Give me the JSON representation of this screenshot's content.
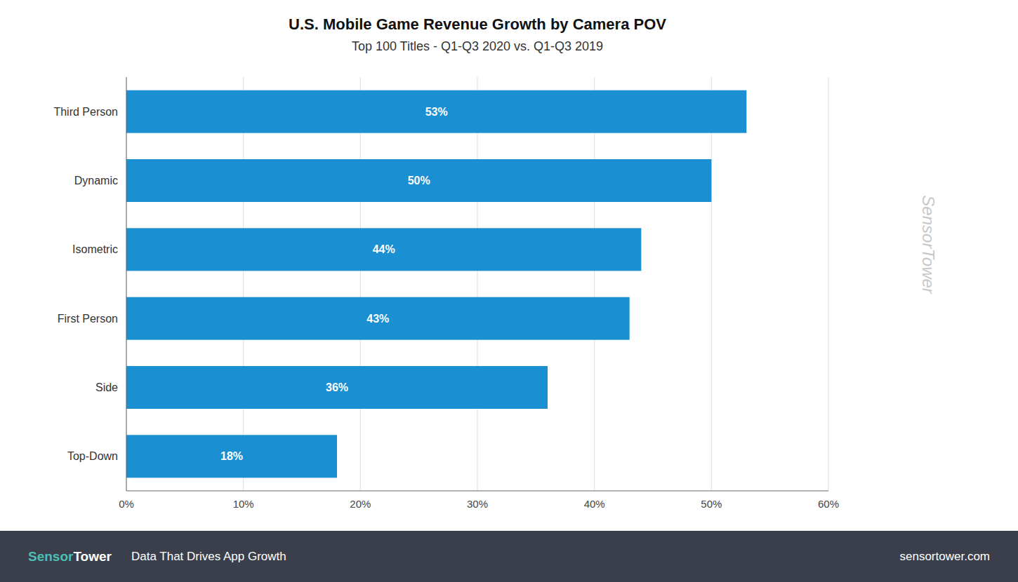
{
  "chart_data": {
    "type": "bar",
    "orientation": "horizontal",
    "title": "U.S. Mobile Game Revenue Growth by Camera POV",
    "subtitle": "Top 100 Titles - Q1-Q3 2020 vs. Q1-Q3 2019",
    "categories": [
      "Third Person",
      "Dynamic",
      "Isometric",
      "First Person",
      "Side",
      "Top-Down"
    ],
    "values": [
      53,
      50,
      44,
      43,
      36,
      18
    ],
    "value_labels": [
      "53%",
      "50%",
      "44%",
      "43%",
      "36%",
      "18%"
    ],
    "data_labels": true,
    "color": "#1a8fd1",
    "xlim": [
      0,
      60
    ],
    "xticks": [
      {
        "value": 0,
        "label": "0%"
      },
      {
        "value": 10,
        "label": "10%"
      },
      {
        "value": 20,
        "label": "20%"
      },
      {
        "value": 30,
        "label": "30%"
      },
      {
        "value": 40,
        "label": "40%"
      },
      {
        "value": 50,
        "label": "50%"
      },
      {
        "value": 60,
        "label": "60%"
      }
    ],
    "grid": true,
    "annotations": [
      "SensorTower",
      "Sensor",
      "Tower",
      "Data That Drives App Growth",
      "sensortower.com"
    ]
  }
}
